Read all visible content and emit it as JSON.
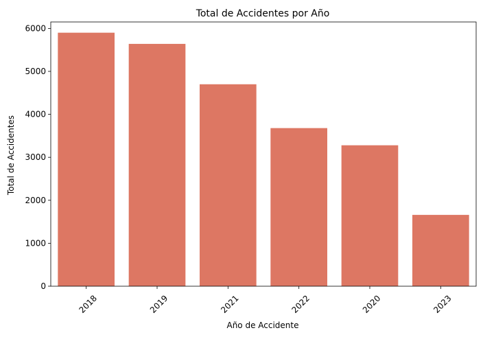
{
  "chart_data": {
    "type": "bar",
    "title": "Total de Accidentes por Año",
    "xlabel": "Año de Accidente",
    "ylabel": "Total de Accidentes",
    "categories": [
      "2018",
      "2019",
      "2021",
      "2022",
      "2020",
      "2023"
    ],
    "values": [
      5900,
      5640,
      4700,
      3680,
      3280,
      1660
    ],
    "ylim": [
      0,
      6150
    ],
    "yticks": [
      0,
      1000,
      2000,
      3000,
      4000,
      5000,
      6000
    ],
    "xtick_rotation": 45,
    "grid": false,
    "legend": "none",
    "bar_color": "#dd7763"
  }
}
